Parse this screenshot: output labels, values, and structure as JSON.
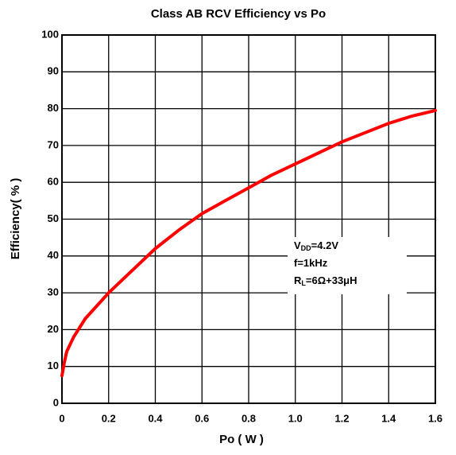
{
  "chart_data": {
    "type": "line",
    "title": "Class AB  RCV Efficiency  vs   Po",
    "xlabel": "Po ( W )",
    "ylabel": "Efficiency( % )",
    "x": [
      0,
      0.01,
      0.02,
      0.05,
      0.1,
      0.2,
      0.3,
      0.4,
      0.5,
      0.6,
      0.7,
      0.8,
      0.9,
      1.0,
      1.1,
      1.2,
      1.3,
      1.4,
      1.5,
      1.6
    ],
    "series": [
      {
        "color": "#ff0000",
        "values": [
          7.5,
          11,
          14,
          18,
          23,
          30,
          36,
          42,
          47,
          51.5,
          55,
          58.5,
          62,
          65,
          68,
          71,
          73.5,
          76,
          78,
          79.5
        ]
      }
    ],
    "xlim": [
      0,
      1.6
    ],
    "xticks": [
      0,
      0.2,
      0.4,
      0.6,
      0.8,
      {
        "value": 1,
        "label": "1.0"
      },
      1.2,
      1.4,
      1.6
    ],
    "ylim": [
      0,
      100
    ],
    "yticks": [
      0,
      10,
      20,
      30,
      40,
      50,
      60,
      70,
      80,
      90,
      100
    ],
    "grid": true,
    "annotation": [
      [
        "V",
        "DD",
        "=4.2V"
      ],
      [
        "f=1kHz"
      ],
      [
        "R",
        "L",
        "=6Ω+33μH"
      ]
    ]
  }
}
